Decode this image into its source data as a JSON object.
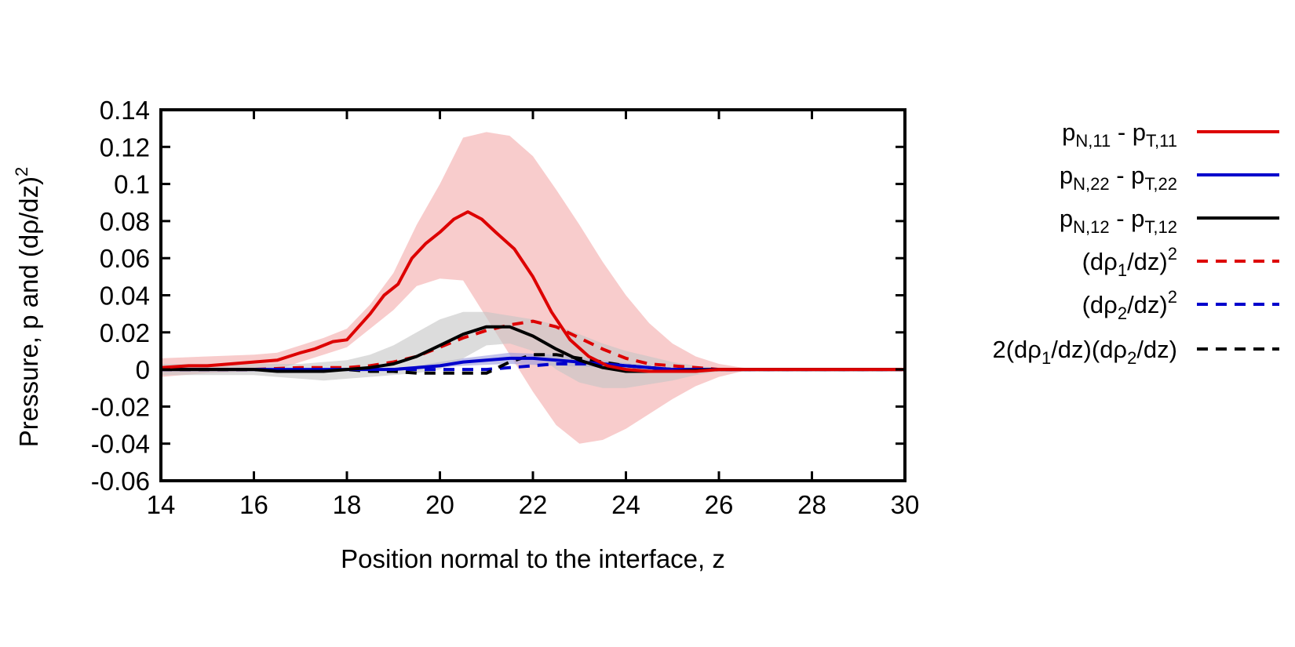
{
  "chart_data": {
    "type": "line",
    "xlabel": "Position normal to the interface, z",
    "ylabel_main": "Pressure, p and (dρ/dz)",
    "ylabel_sup": "2",
    "xlim": [
      14,
      30
    ],
    "ylim": [
      -0.06,
      0.14
    ],
    "x_ticks": [
      14,
      16,
      18,
      20,
      22,
      24,
      26,
      28,
      30
    ],
    "x_tick_labels": [
      "14",
      "16",
      "18",
      "20",
      "22",
      "24",
      "26",
      "28",
      "30"
    ],
    "y_ticks": [
      -0.06,
      -0.04,
      -0.02,
      0,
      0.02,
      0.04,
      0.06,
      0.08,
      0.1,
      0.12,
      0.14
    ],
    "y_tick_labels": [
      "-0.06",
      "-0.04",
      "-0.02",
      "0",
      "0.02",
      "0.04",
      "0.06",
      "0.08",
      "0.1",
      "0.12",
      "0.14"
    ],
    "grid": false,
    "legend_position": "outside-right",
    "series": [
      {
        "name": "pN,11 - pT,11",
        "label_parts": [
          [
            "p",
            "n"
          ],
          [
            "N,11",
            "sub"
          ],
          [
            " - p",
            "n"
          ],
          [
            "T,11",
            "sub"
          ]
        ],
        "color": "#dd0000",
        "dash": "solid",
        "x": [
          14,
          14.6,
          15,
          15.5,
          16,
          16.5,
          17,
          17.3,
          17.7,
          18,
          18.5,
          18.8,
          19.1,
          19.4,
          19.7,
          20,
          20.3,
          20.6,
          20.9,
          21.2,
          21.6,
          22,
          22.4,
          22.8,
          23.2,
          23.6,
          24,
          24.5,
          25,
          25.5,
          26,
          26.5,
          27,
          28,
          29,
          30
        ],
        "y": [
          0.001,
          0.002,
          0.002,
          0.003,
          0.004,
          0.005,
          0.009,
          0.011,
          0.015,
          0.016,
          0.03,
          0.04,
          0.046,
          0.06,
          0.068,
          0.074,
          0.081,
          0.085,
          0.081,
          0.074,
          0.065,
          0.05,
          0.031,
          0.016,
          0.007,
          0.002,
          0.0,
          -0.001,
          -0.001,
          -0.001,
          0.0,
          0.0,
          0.0,
          0.0,
          0.0,
          0.0
        ],
        "band": {
          "color": "#f4aaaa",
          "x": [
            14,
            15,
            16,
            16.5,
            17,
            17.5,
            18,
            18.5,
            19,
            19.5,
            20,
            20.5,
            21,
            21.5,
            22,
            22.5,
            23,
            23.5,
            24,
            24.5,
            25,
            25.5,
            26,
            26.5,
            27,
            28,
            30
          ],
          "upper": [
            0.006,
            0.007,
            0.008,
            0.009,
            0.013,
            0.017,
            0.022,
            0.035,
            0.052,
            0.078,
            0.1,
            0.125,
            0.128,
            0.126,
            0.115,
            0.097,
            0.078,
            0.058,
            0.04,
            0.025,
            0.014,
            0.007,
            0.003,
            0.001,
            0.0,
            0.0,
            0.0
          ],
          "lower": [
            -0.004,
            -0.002,
            -0.001,
            0.0,
            0.004,
            0.008,
            0.012,
            0.022,
            0.032,
            0.045,
            0.049,
            0.048,
            0.028,
            0.008,
            -0.012,
            -0.03,
            -0.04,
            -0.038,
            -0.032,
            -0.024,
            -0.016,
            -0.009,
            -0.004,
            -0.001,
            0.0,
            0.0,
            0.0
          ]
        }
      },
      {
        "name": "pN,22 - pT,22",
        "label_parts": [
          [
            "p",
            "n"
          ],
          [
            "N,22",
            "sub"
          ],
          [
            " - p",
            "n"
          ],
          [
            "T,22",
            "sub"
          ]
        ],
        "color": "#0000cc",
        "dash": "solid",
        "x": [
          14,
          16,
          18,
          19,
          19.5,
          20,
          20.5,
          21,
          21.5,
          22,
          22.5,
          23,
          23.5,
          24,
          24.5,
          25,
          26,
          27,
          30
        ],
        "y": [
          0.0,
          0.0,
          0.0,
          0.0,
          0.001,
          0.002,
          0.004,
          0.005,
          0.006,
          0.006,
          0.005,
          0.004,
          0.003,
          0.002,
          0.001,
          0.0,
          0.0,
          0.0,
          0.0
        ],
        "band": {
          "color": "#9999dd",
          "x": [
            19.5,
            20.5,
            21.5,
            22.5,
            23.5,
            24.5
          ],
          "upper": [
            0.002,
            0.006,
            0.009,
            0.008,
            0.005,
            0.002
          ],
          "lower": [
            0.0,
            0.002,
            0.003,
            0.002,
            0.001,
            0.0
          ]
        }
      },
      {
        "name": "pN,12 - pT,12",
        "label_parts": [
          [
            "p",
            "n"
          ],
          [
            "N,12",
            "sub"
          ],
          [
            " - p",
            "n"
          ],
          [
            "T,12",
            "sub"
          ]
        ],
        "color": "#000000",
        "dash": "solid",
        "x": [
          14,
          15,
          16,
          16.5,
          17,
          17.5,
          18,
          18.5,
          19,
          19.5,
          20,
          20.5,
          21,
          21.5,
          22,
          22.5,
          23,
          23.5,
          24,
          24.5,
          25,
          26,
          27,
          30
        ],
        "y": [
          0.0,
          0.0,
          0.0,
          -0.001,
          -0.001,
          -0.001,
          0.0,
          0.001,
          0.003,
          0.007,
          0.013,
          0.019,
          0.023,
          0.023,
          0.018,
          0.011,
          0.005,
          0.001,
          -0.001,
          -0.001,
          -0.001,
          0.0,
          0.0,
          0.0
        ],
        "band": {
          "color": "#c4c4c4",
          "x": [
            14,
            15,
            16,
            16.5,
            17,
            17.5,
            18,
            18.5,
            19,
            19.5,
            20,
            20.5,
            21,
            21.5,
            22,
            22.5,
            23,
            23.5,
            24,
            24.5,
            25,
            25.5,
            26,
            26.5,
            27,
            28,
            30
          ],
          "upper": [
            0.003,
            0.003,
            0.003,
            0.003,
            0.003,
            0.004,
            0.005,
            0.008,
            0.013,
            0.02,
            0.027,
            0.031,
            0.031,
            0.029,
            0.027,
            0.024,
            0.019,
            0.014,
            0.01,
            0.007,
            0.004,
            0.002,
            0.001,
            0.0,
            0.0,
            0.0,
            0.0
          ],
          "lower": [
            -0.003,
            -0.003,
            -0.003,
            -0.004,
            -0.005,
            -0.006,
            -0.005,
            -0.004,
            -0.003,
            -0.002,
            0.0,
            0.006,
            0.013,
            0.014,
            0.01,
            0.0,
            -0.007,
            -0.01,
            -0.01,
            -0.008,
            -0.006,
            -0.003,
            -0.001,
            0.0,
            0.0,
            0.0,
            0.0
          ]
        }
      },
      {
        "name": "(dρ1/dz)2",
        "label_parts": [
          [
            "(dρ",
            "n"
          ],
          [
            "1",
            "sub"
          ],
          [
            "/dz)",
            "n"
          ],
          [
            "2",
            "sup"
          ]
        ],
        "color": "#dd0000",
        "dash": "dashed",
        "x": [
          14,
          16,
          17,
          18,
          18.5,
          19,
          19.5,
          20,
          20.5,
          21,
          21.5,
          22,
          22.5,
          23,
          23.5,
          24,
          24.5,
          25,
          25.5,
          26,
          26.5,
          27,
          30
        ],
        "y": [
          0.0,
          0.0,
          0.001,
          0.001,
          0.002,
          0.004,
          0.007,
          0.012,
          0.017,
          0.021,
          0.024,
          0.026,
          0.023,
          0.017,
          0.011,
          0.006,
          0.003,
          0.002,
          0.001,
          0.0,
          0.0,
          0.0,
          0.0
        ]
      },
      {
        "name": "(dρ2/dz)2",
        "label_parts": [
          [
            "(dρ",
            "n"
          ],
          [
            "2",
            "sub"
          ],
          [
            "/dz)",
            "n"
          ],
          [
            "2",
            "sup"
          ]
        ],
        "color": "#0000cc",
        "dash": "dashed",
        "x": [
          14,
          20,
          21,
          21.5,
          22,
          22.5,
          23,
          23.5,
          24,
          24.5,
          25,
          26,
          30
        ],
        "y": [
          0.0,
          0.0,
          0.0,
          0.001,
          0.002,
          0.003,
          0.003,
          0.003,
          0.002,
          0.001,
          0.0,
          0.0,
          0.0
        ]
      },
      {
        "name": "2(dρ1/dz)(dρ2/dz)",
        "label_parts": [
          [
            "2(dρ",
            "n"
          ],
          [
            "1",
            "sub"
          ],
          [
            "/dz)(dρ",
            "n"
          ],
          [
            "2",
            "sub"
          ],
          [
            "/dz)",
            "n"
          ]
        ],
        "color": "#000000",
        "dash": "dashed",
        "x": [
          14,
          17,
          18,
          18.5,
          19,
          19.5,
          20,
          20.5,
          21,
          21.5,
          22,
          22.5,
          23,
          23.5,
          24,
          24.5,
          25,
          26,
          27,
          30
        ],
        "y": [
          0.0,
          0.0,
          0.0,
          -0.001,
          -0.001,
          -0.002,
          -0.002,
          -0.002,
          -0.002,
          0.004,
          0.008,
          0.008,
          0.006,
          0.004,
          0.002,
          0.001,
          0.0,
          0.0,
          0.0,
          0.0
        ]
      }
    ]
  }
}
